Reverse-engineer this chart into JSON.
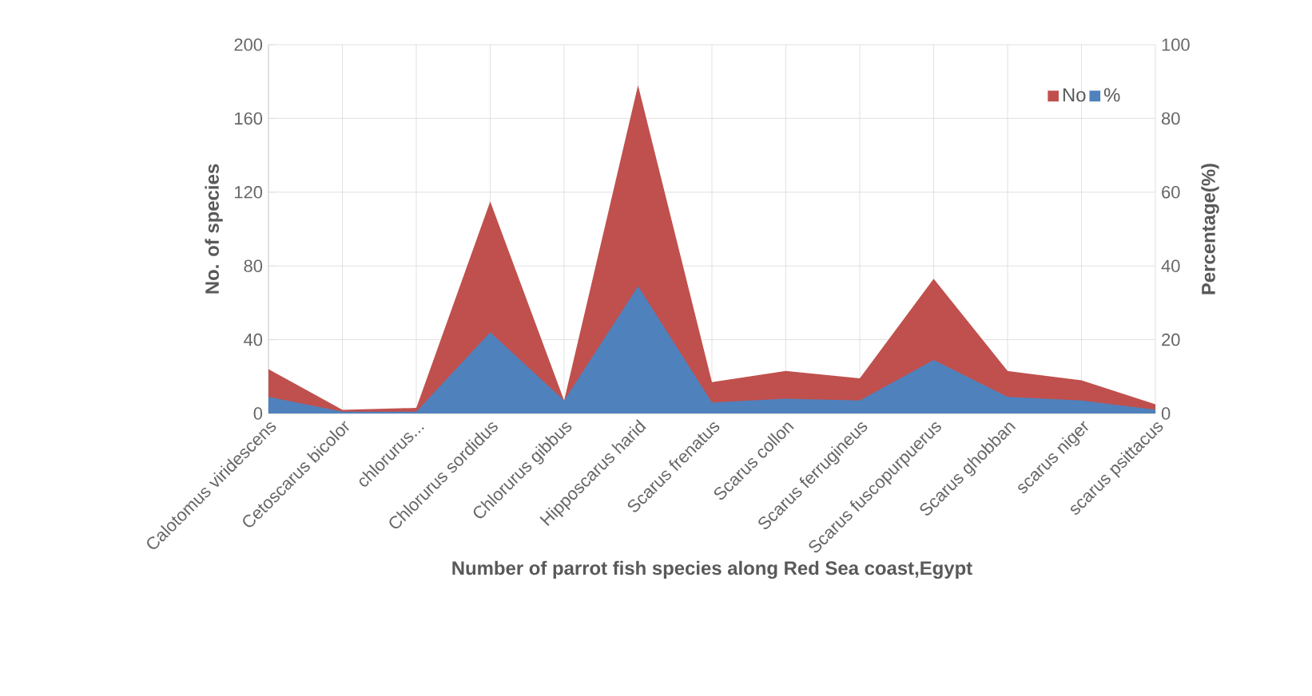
{
  "chart_data": {
    "type": "area",
    "xlabel": "Number of parrot fish species along Red Sea coast,Egypt",
    "ylabel": "No. of species",
    "y2label": "Percentage(%)",
    "categories": [
      "Calotomus viridescens",
      "Cetoscarus bicolor",
      "chlorurus...",
      "Chlorurus sordidus",
      "Chlorurus gibbus",
      "Hipposcarus harid",
      "Scarus frenatus",
      "Scarus collon",
      "Scarus ferrugineus",
      "Scarus fuscopurpuerus",
      "Scarus ghobban",
      "scarus niger",
      "scarus psittacus"
    ],
    "series": [
      {
        "name": "No",
        "color": "#c0504d",
        "values": [
          24,
          2,
          3,
          115,
          7,
          178,
          17,
          23,
          19,
          73,
          23,
          18,
          5
        ]
      },
      {
        "name": "%",
        "color": "#4f81bd",
        "axis": "y2",
        "values": [
          4.5,
          0.5,
          0.5,
          22,
          3.5,
          34.5,
          3,
          4,
          3.5,
          14.5,
          4.5,
          3.5,
          1
        ]
      }
    ],
    "ylim": [
      0,
      200
    ],
    "yticks": [
      0,
      40,
      80,
      120,
      160,
      200
    ],
    "y2lim": [
      0,
      100
    ],
    "y2ticks": [
      0,
      20,
      40,
      60,
      80,
      100
    ],
    "grid": true,
    "legend": "top right"
  }
}
